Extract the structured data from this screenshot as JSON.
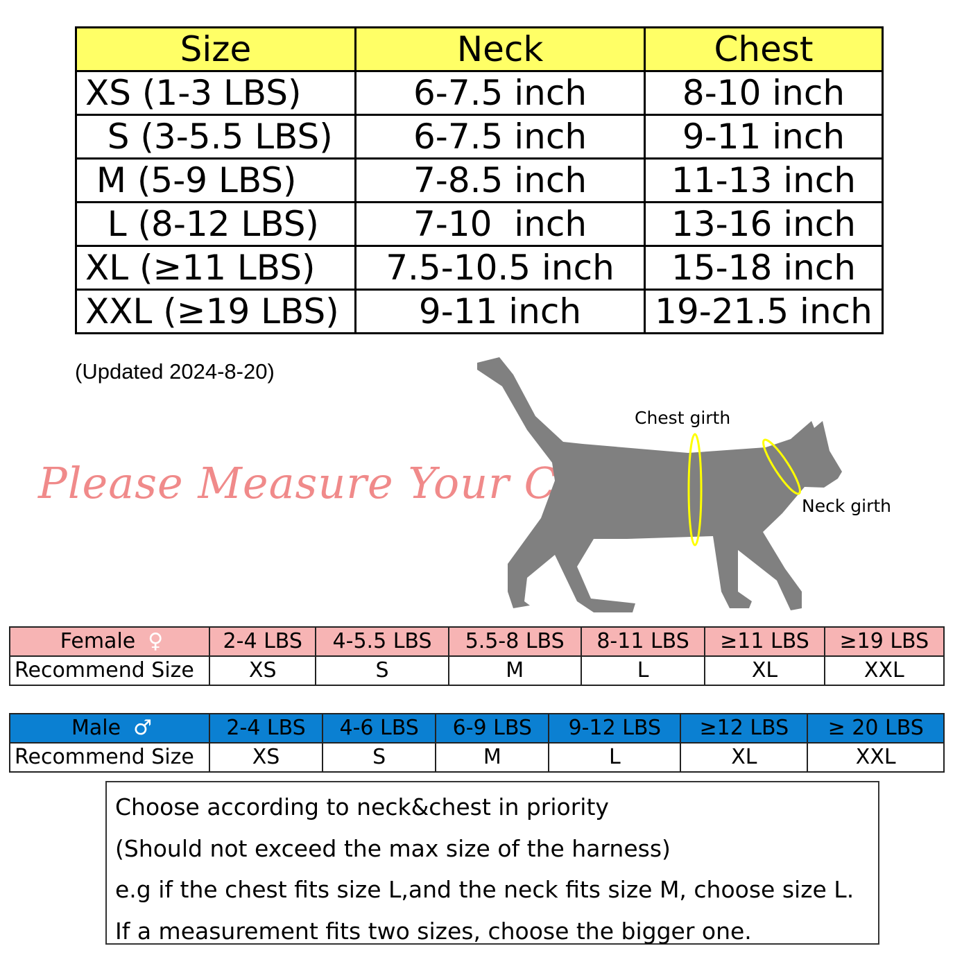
{
  "size_table": {
    "headers": [
      "Size",
      "Neck",
      "Chest"
    ],
    "rows": [
      {
        "size": "XS (1-3 LBS)",
        "neck": "6-7.5 inch",
        "chest": "8-10 inch"
      },
      {
        "size": "  S (3-5.5 LBS)",
        "neck": "6-7.5 inch",
        "chest": "9-11 inch"
      },
      {
        "size": " M (5-9 LBS)",
        "neck": "7-8.5 inch",
        "chest": "11-13 inch"
      },
      {
        "size": "  L (8-12 LBS)",
        "neck": "7-10  inch",
        "chest": "13-16 inch"
      },
      {
        "size": "XL (≥11 LBS)",
        "neck": "7.5-10.5 inch",
        "chest": "15-18 inch"
      },
      {
        "size": "XXL (≥19 LBS)",
        "neck": "9-11 inch",
        "chest": "19-21.5 inch"
      }
    ],
    "header_color": "#ffff66"
  },
  "updated": "(Updated 2024-8-20)",
  "measure_title": "Please Measure Your Cat",
  "cat_labels": {
    "chest": "Chest girth",
    "neck": "Neck girth"
  },
  "female": {
    "label": "Female",
    "symbol": "♀",
    "color": "#f7b4b4",
    "weights": [
      "2-4 LBS",
      "4-5.5 LBS",
      "5.5-8 LBS",
      "8-11 LBS",
      "≥11 LBS",
      "≥19 LBS"
    ],
    "row_label": "Recommend Size",
    "sizes": [
      "XS",
      "S",
      "M",
      "L",
      "XL",
      "XXL"
    ]
  },
  "male": {
    "label": "Male",
    "symbol": "♂",
    "color": "#0b80d2",
    "weights": [
      "2-4 LBS",
      "4-6 LBS",
      "6-9 LBS",
      "9-12 LBS",
      "≥12 LBS",
      "≥ 20 LBS"
    ],
    "row_label": "Recommend Size",
    "sizes": [
      "XS",
      "S",
      "M",
      "L",
      "XL",
      "XXL"
    ]
  },
  "notes": [
    "Choose according to neck&chest in priority",
    "(Should not exceed the max size of the harness)",
    "e.g if the chest fits size L,and the neck fits size M, choose size L.",
    "If a measurement fits two sizes, choose the bigger one."
  ]
}
